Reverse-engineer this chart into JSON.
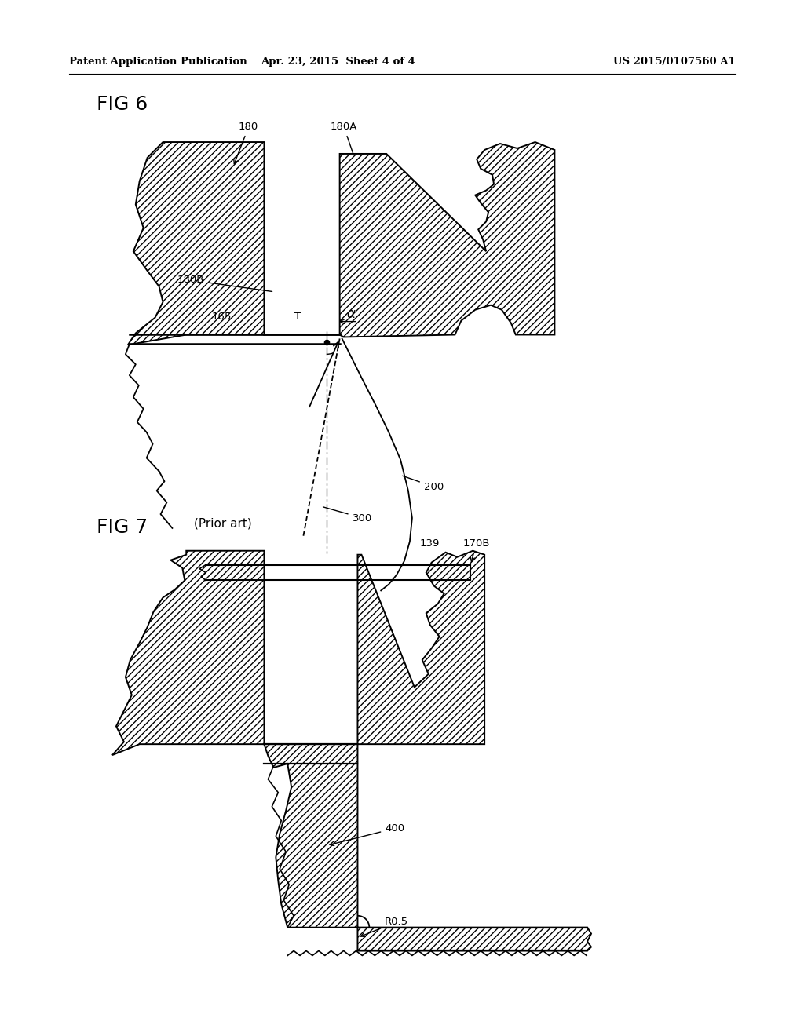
{
  "background_color": "#ffffff",
  "header_left": "Patent Application Publication",
  "header_center": "Apr. 23, 2015  Sheet 4 of 4",
  "header_right": "US 2015/0107560 A1",
  "fig6_label": "FIG 6",
  "fig7_label": "FIG 7",
  "fig7_sublabel": "(Prior art)"
}
